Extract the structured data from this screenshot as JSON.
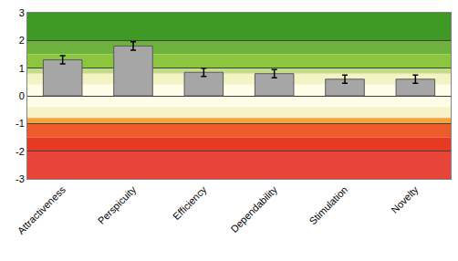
{
  "chart_data": {
    "type": "bar",
    "categories": [
      "Attractiveness",
      "Perspicuity",
      "Efficiency",
      "Dependability",
      "Stimulation",
      "Novelty"
    ],
    "values": [
      1.3,
      1.8,
      0.85,
      0.8,
      0.6,
      0.6
    ],
    "error": [
      0.15,
      0.15,
      0.15,
      0.15,
      0.15,
      0.15
    ],
    "color": "#a6a6a6",
    "ylim": [
      -3,
      3
    ],
    "yticks": [
      -3,
      -2,
      -1,
      0,
      1,
      2,
      3
    ],
    "grid": true
  }
}
